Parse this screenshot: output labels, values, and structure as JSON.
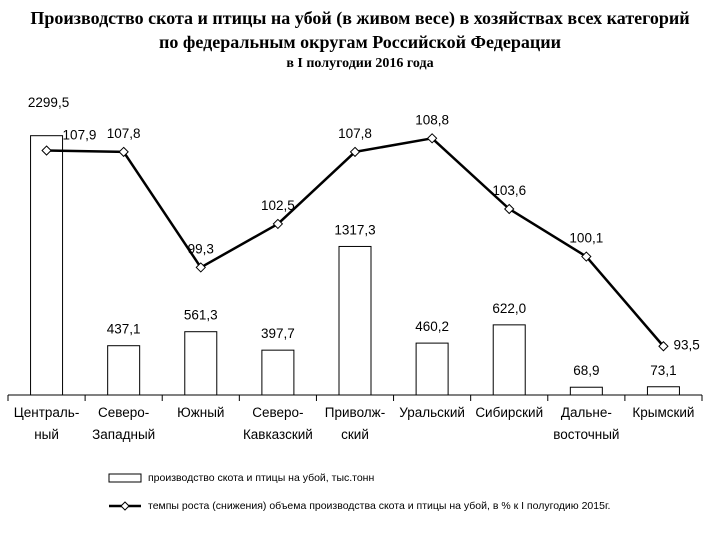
{
  "title": {
    "line1": "Производство скота и птицы на убой (в живом весе) в хозяйствах всех категорий",
    "line2": "по федеральным округам Российской Федерации",
    "line3": "в I полугодии 2016 года"
  },
  "legend": {
    "bar_label": "производство скота и птицы на убой, тыс.тонн",
    "line_label": "темпы роста (снижения) объема производства скота и птицы на убой, в % к I полугодию 2015г."
  },
  "colors": {
    "bar_fill": "#ffffff",
    "bar_stroke": "#000000",
    "line": "#000000",
    "axis": "#000000"
  },
  "chart_data": {
    "type": "bar",
    "categories": [
      [
        "Централь-",
        "ный"
      ],
      [
        "Северо-",
        "Западный"
      ],
      [
        "Южный"
      ],
      [
        "Северо-",
        "Кавказский"
      ],
      [
        "Приволж-",
        "ский"
      ],
      [
        "Уральский"
      ],
      [
        "Сибирский"
      ],
      [
        "Дальне-",
        "восточный"
      ],
      [
        "Крымский"
      ]
    ],
    "series": [
      {
        "name": "производство скота и птицы на убой, тыс.тонн",
        "type": "bar",
        "values": [
          2299.5,
          437.1,
          561.3,
          397.7,
          1317.3,
          460.2,
          622.0,
          68.9,
          73.1
        ],
        "labels": [
          "2299,5",
          "437,1",
          "561,3",
          "397,7",
          "1317,3",
          "460,2",
          "622,0",
          "68,9",
          "73,1"
        ]
      },
      {
        "name": "темпы роста (снижения) объема производства скота и птицы на убой, в % к I полугодию 2015г.",
        "type": "line",
        "values": [
          107.9,
          107.8,
          99.3,
          102.5,
          107.8,
          108.8,
          103.6,
          100.1,
          93.5
        ],
        "labels": [
          "107,9",
          "107,8",
          "99,3",
          "102,5",
          "107,8",
          "108,8",
          "103,6",
          "100,1",
          "93,5"
        ]
      }
    ],
    "bar_ylim": [
      0,
      2350
    ],
    "line_ylim": [
      88,
      110
    ],
    "grid": false,
    "legend_position": "bottom"
  }
}
